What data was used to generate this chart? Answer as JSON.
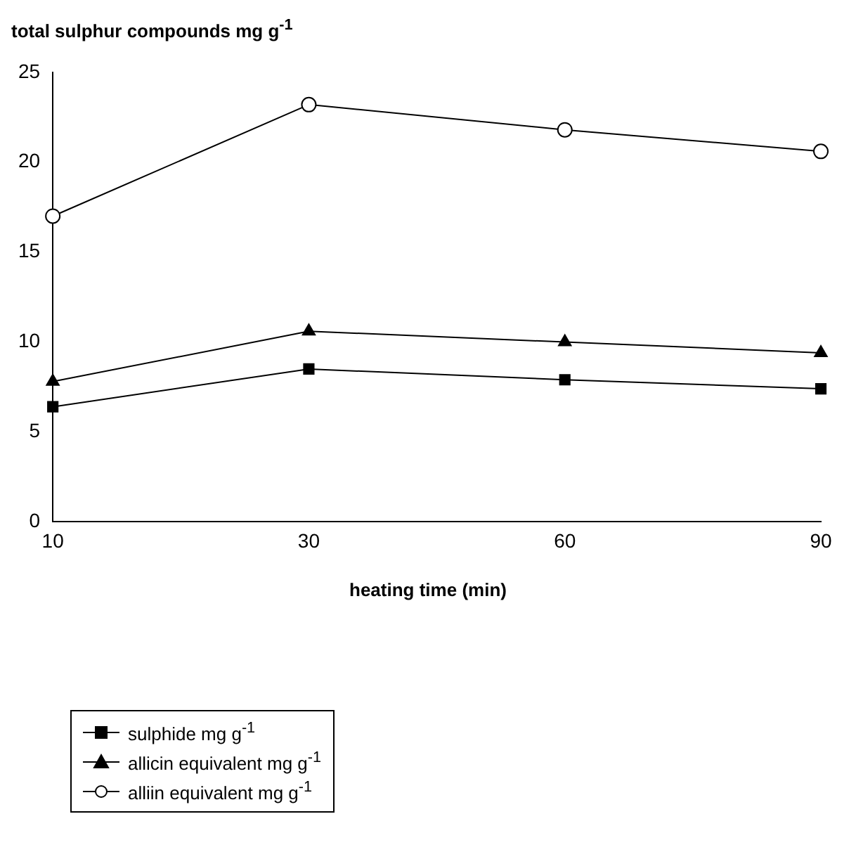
{
  "chart_data": {
    "type": "line",
    "title": "total sulphur compounds mg g$^{-1}$",
    "xlabel": "heating time (min)",
    "categories": [
      "10",
      "30",
      "60",
      "90"
    ],
    "series": [
      {
        "name": "sulphide mg g$^{-1}$",
        "color": "#000000",
        "marker": "square",
        "values": [
          6.4,
          8.5,
          7.9,
          7.4
        ]
      },
      {
        "name": "allicin equivalent mg g$^{-1}$",
        "color": "#000000",
        "marker": "triangle",
        "values": [
          7.8,
          10.6,
          10.0,
          9.4
        ]
      },
      {
        "name": "alliin equivalent mg g$^{-1}$",
        "color": "#000000",
        "marker": "circle",
        "values": [
          17.0,
          23.2,
          21.8,
          20.6
        ]
      }
    ],
    "ylim": [
      0,
      25
    ],
    "yticks": [
      0,
      5,
      10,
      15,
      20,
      25
    ],
    "grid": false,
    "legend": "bottom left",
    "line_style": "solid"
  }
}
